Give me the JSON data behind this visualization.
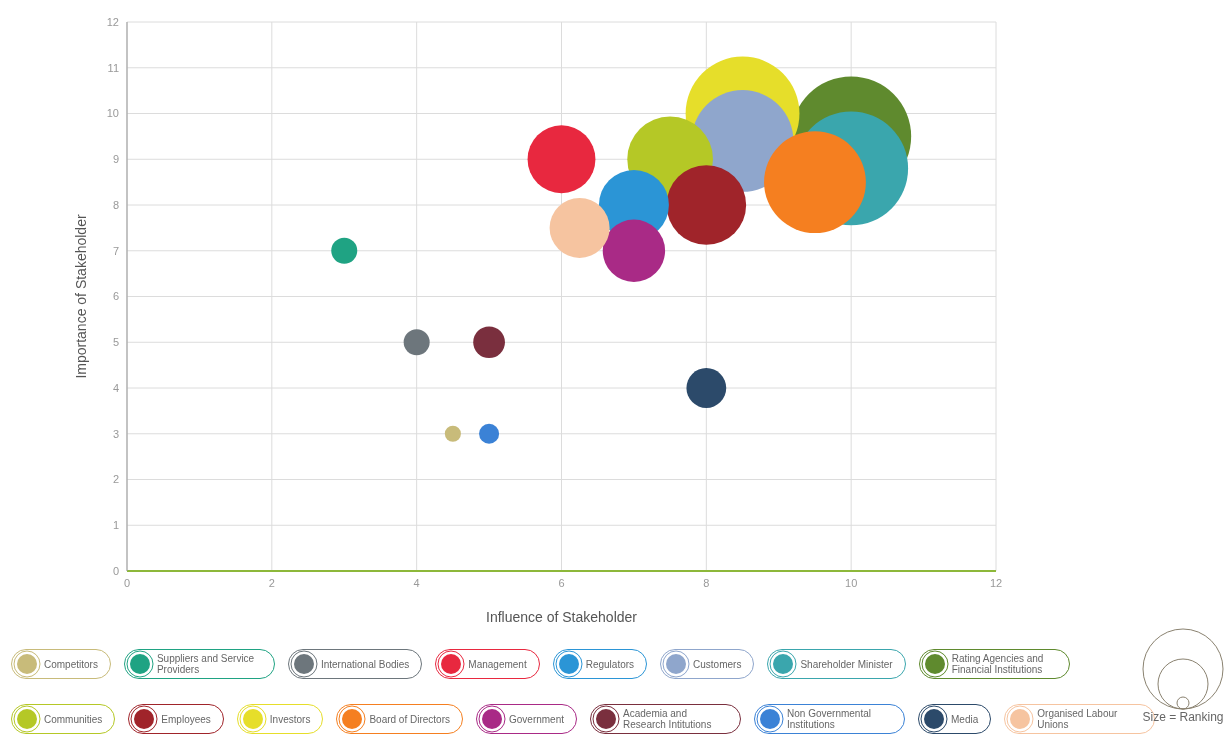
{
  "chart_data": {
    "type": "bubble",
    "xlabel": "Influence of Stakeholder",
    "ylabel": "Importance of Stakeholder",
    "xlim": [
      0,
      12
    ],
    "xticks": [
      0,
      2,
      4,
      6,
      8,
      10,
      12
    ],
    "ylim": [
      0,
      12
    ],
    "yticks": [
      0,
      1,
      2,
      3,
      4,
      5,
      6,
      7,
      8,
      9,
      10,
      11,
      12
    ],
    "grid": true,
    "legend": "bottom",
    "marker": "circle",
    "annotations": [
      "Size = Ranking"
    ],
    "series": [
      {
        "name": "Competitors",
        "color": "#c8bb7a",
        "x": [
          4.5
        ],
        "values": [
          3
        ],
        "sizes": [
          0.018
        ]
      },
      {
        "name": "Suppliers and Service Providers",
        "color": "#1fa383",
        "x": [
          3
        ],
        "values": [
          7
        ],
        "sizes": [
          0.047
        ]
      },
      {
        "name": "International Bodies",
        "color": "#6d767c",
        "x": [
          4
        ],
        "values": [
          5
        ],
        "sizes": [
          0.047
        ]
      },
      {
        "name": "Management",
        "color": "#e8283f",
        "x": [
          6
        ],
        "values": [
          9
        ],
        "sizes": [
          0.32
        ]
      },
      {
        "name": "Regulators",
        "color": "#2b95d6",
        "x": [
          7
        ],
        "values": [
          8
        ],
        "sizes": [
          0.34
        ]
      },
      {
        "name": "Customers",
        "color": "#8fa6cc",
        "x": [
          8.5
        ],
        "values": [
          9.4
        ],
        "sizes": [
          0.72
        ]
      },
      {
        "name": "Shareholder Minister",
        "color": "#3aa6ad",
        "x": [
          10
        ],
        "values": [
          8.8
        ],
        "sizes": [
          0.9
        ]
      },
      {
        "name": "Rating Agencies and Financial Institutions",
        "color": "#5f8a2e",
        "x": [
          10
        ],
        "values": [
          9.5
        ],
        "sizes": [
          1
        ]
      },
      {
        "name": "Communities",
        "color": "#b5c826",
        "x": [
          7.5
        ],
        "values": [
          9
        ],
        "sizes": [
          0.51
        ]
      },
      {
        "name": "Employees",
        "color": "#a0242a",
        "x": [
          8
        ],
        "values": [
          8
        ],
        "sizes": [
          0.44
        ]
      },
      {
        "name": "Investors",
        "color": "#e6de2a",
        "x": [
          8.5
        ],
        "values": [
          10
        ],
        "sizes": [
          0.9
        ]
      },
      {
        "name": "Board of Directors",
        "color": "#f57f20",
        "x": [
          9.5
        ],
        "values": [
          8.5
        ],
        "sizes": [
          0.72
        ]
      },
      {
        "name": "Government",
        "color": "#a92a86",
        "x": [
          7
        ],
        "values": [
          7
        ],
        "sizes": [
          0.27
        ]
      },
      {
        "name": "Academia and Research Intitutions",
        "color": "#7a2f3e",
        "x": [
          5
        ],
        "values": [
          5
        ],
        "sizes": [
          0.07
        ]
      },
      {
        "name": "Non Governmental Institutions",
        "color": "#3b82d6",
        "x": [
          5
        ],
        "values": [
          3
        ],
        "sizes": [
          0.028
        ]
      },
      {
        "name": "Media",
        "color": "#2c4a6a",
        "x": [
          8
        ],
        "values": [
          4
        ],
        "sizes": [
          0.11
        ]
      },
      {
        "name": "Organised Labour Unions",
        "color": "#f6c4a0",
        "x": [
          6.25
        ],
        "values": [
          7.5
        ],
        "sizes": [
          0.25
        ]
      }
    ]
  }
}
